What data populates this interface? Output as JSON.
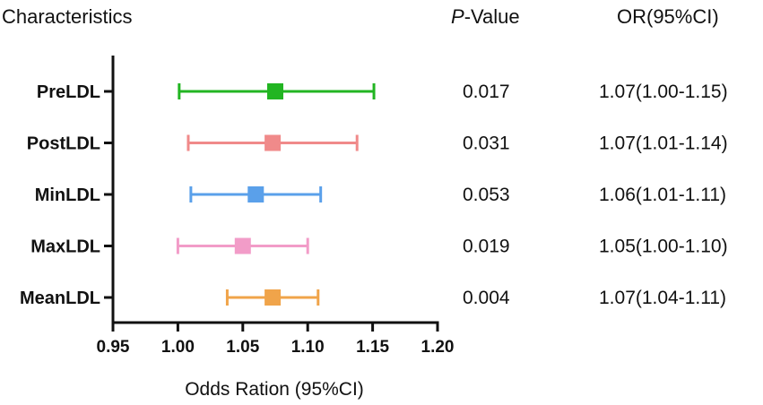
{
  "chart_data": {
    "type": "forest",
    "title": "",
    "headers": {
      "characteristics": "Characteristics",
      "pvalue_prefix": "P",
      "pvalue_suffix": "-Value",
      "or": "OR(95%CI)"
    },
    "xlabel": "Odds Ration (95%CI)",
    "xlim": [
      0.95,
      1.2
    ],
    "xticks": [
      "0.95",
      "1.00",
      "1.05",
      "1.10",
      "1.15",
      "1.20"
    ],
    "rows": [
      {
        "label": "PreLDL",
        "or": 1.075,
        "lower": 1.001,
        "upper": 1.151,
        "p": "0.017",
        "ci_text": "1.07(1.00-1.15)",
        "color": "#22b522"
      },
      {
        "label": "PostLDL",
        "or": 1.073,
        "lower": 1.008,
        "upper": 1.138,
        "p": "0.031",
        "ci_text": "1.07(1.01-1.14)",
        "color": "#f08a8a"
      },
      {
        "label": "MinLDL",
        "or": 1.06,
        "lower": 1.01,
        "upper": 1.11,
        "p": "0.053",
        "ci_text": "1.06(1.01-1.11)",
        "color": "#5aa0ea"
      },
      {
        "label": "MaxLDL",
        "or": 1.05,
        "lower": 1.0,
        "upper": 1.1,
        "p": "0.019",
        "ci_text": "1.05(1.00-1.10)",
        "color": "#f29cc8"
      },
      {
        "label": "MeanLDL",
        "or": 1.073,
        "lower": 1.038,
        "upper": 1.108,
        "p": "0.004",
        "ci_text": "1.07(1.04-1.11)",
        "color": "#f0a44a"
      }
    ]
  }
}
